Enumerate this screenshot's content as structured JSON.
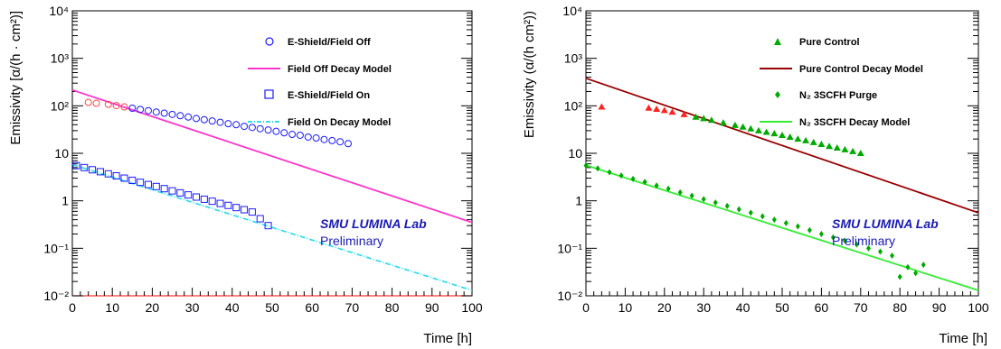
{
  "chart_data": [
    {
      "type": "scatter",
      "ylabel": "Emissivity [α/(h · cm²)]",
      "xlabel": "Time [h]",
      "xlim": [
        0,
        100
      ],
      "ylim": [
        0.01,
        10000
      ],
      "yscale": "log",
      "x_ticks": [
        "0",
        "10",
        "20",
        "30",
        "40",
        "50",
        "60",
        "70",
        "80",
        "90",
        "100"
      ],
      "y_ticks": [
        "10⁻²",
        "10⁻¹",
        "1",
        "10",
        "10²",
        "10³",
        "10⁴"
      ],
      "annotation_lab": "SMU LUMINA Lab",
      "annotation_prelim": "Preliminary",
      "legend_position": "top-right",
      "series": [
        {
          "name": "E-Shield/Field Off",
          "marker": "open-circle",
          "color": "#1a1aff",
          "x": [
            4,
            6,
            9,
            11,
            13,
            15,
            17,
            19,
            21,
            23,
            25,
            27,
            29,
            31,
            33,
            35,
            37,
            39,
            41,
            43,
            45,
            47,
            49,
            51,
            53,
            55,
            57,
            59,
            61,
            63,
            65,
            67,
            69
          ],
          "y": [
            118,
            113,
            107,
            101,
            95,
            89,
            84,
            79,
            74,
            70,
            66,
            62,
            58,
            54,
            51,
            48,
            45,
            42,
            40,
            37,
            35,
            33,
            31,
            29,
            27,
            25,
            24,
            22,
            21,
            19.5,
            18.5,
            17.5,
            16
          ]
        },
        {
          "name": "Field Off Decay Model",
          "line": true,
          "color": "#ff33cc",
          "x": [
            0,
            100
          ],
          "y": [
            215,
            0.35
          ]
        },
        {
          "name": "E-Shield/Field On",
          "marker": "open-square",
          "color": "#1a1aff",
          "x": [
            1,
            3,
            5,
            7,
            9,
            11,
            13,
            15,
            17,
            19,
            21,
            23,
            25,
            27,
            29,
            31,
            33,
            35,
            37,
            39,
            41,
            43,
            45,
            47,
            49
          ],
          "y": [
            5.5,
            5.0,
            4.5,
            4.1,
            3.7,
            3.35,
            3.0,
            2.7,
            2.45,
            2.2,
            2.0,
            1.8,
            1.62,
            1.47,
            1.33,
            1.2,
            1.08,
            0.98,
            0.88,
            0.8,
            0.72,
            0.65,
            0.58,
            0.42,
            0.3
          ]
        },
        {
          "name": "Field On Decay Model",
          "line": true,
          "color": "#33ddee",
          "x": [
            0,
            100
          ],
          "y": [
            5.8,
            0.013
          ]
        }
      ]
    },
    {
      "type": "scatter",
      "ylabel": "Emissivity (α/(h cm²))",
      "xlabel": "Time [h]",
      "xlim": [
        0,
        100
      ],
      "ylim": [
        0.01,
        10000
      ],
      "yscale": "log",
      "x_ticks": [
        "0",
        "10",
        "20",
        "30",
        "40",
        "50",
        "60",
        "70",
        "80",
        "90",
        "100"
      ],
      "y_ticks": [
        "10⁻²",
        "10⁻¹",
        "1",
        "10",
        "10²",
        "10³",
        "10⁴"
      ],
      "annotation_lab": "SMU LUMINA Lab",
      "annotation_prelim": "Preliminary",
      "legend_position": "top-right",
      "series": [
        {
          "name": "Pure Control",
          "marker": "triangle",
          "color": "#00aa00",
          "x": [
            4,
            16,
            18,
            20,
            22,
            25,
            28,
            30,
            32,
            35,
            38,
            40,
            42,
            44,
            46,
            48,
            50,
            52,
            54,
            56,
            58,
            60,
            62,
            64,
            66,
            68,
            70
          ],
          "y": [
            95,
            90,
            85,
            80,
            74,
            66,
            58,
            54,
            50,
            44,
            39,
            36,
            33,
            30,
            28,
            26,
            24,
            22,
            20,
            18.5,
            17,
            15.5,
            14,
            13,
            12,
            11,
            10
          ]
        },
        {
          "name": "Pure Control Decay Model",
          "line": true,
          "color": "#990000",
          "x": [
            0,
            100
          ],
          "y": [
            380,
            0.56
          ]
        },
        {
          "name": "N₂ 3SCFH Purge",
          "marker": "diamond",
          "color": "#00aa00",
          "x": [
            0,
            3,
            6,
            9,
            12,
            15,
            18,
            21,
            24,
            27,
            30,
            33,
            36,
            39,
            42,
            45,
            48,
            51,
            54,
            57,
            60,
            63,
            66,
            69,
            72,
            75,
            78,
            80,
            82,
            84,
            86
          ],
          "y": [
            5.5,
            4.8,
            4.0,
            3.4,
            2.9,
            2.5,
            2.1,
            1.8,
            1.5,
            1.28,
            1.08,
            0.92,
            0.78,
            0.66,
            0.56,
            0.47,
            0.4,
            0.34,
            0.29,
            0.24,
            0.2,
            0.17,
            0.145,
            0.12,
            0.1,
            0.085,
            0.07,
            0.025,
            0.04,
            0.03,
            0.045
          ]
        },
        {
          "name": "N₂ 3SCFH Decay Model",
          "line": true,
          "color": "#33ee33",
          "x": [
            0,
            100
          ],
          "y": [
            5.6,
            0.013
          ]
        }
      ]
    }
  ]
}
